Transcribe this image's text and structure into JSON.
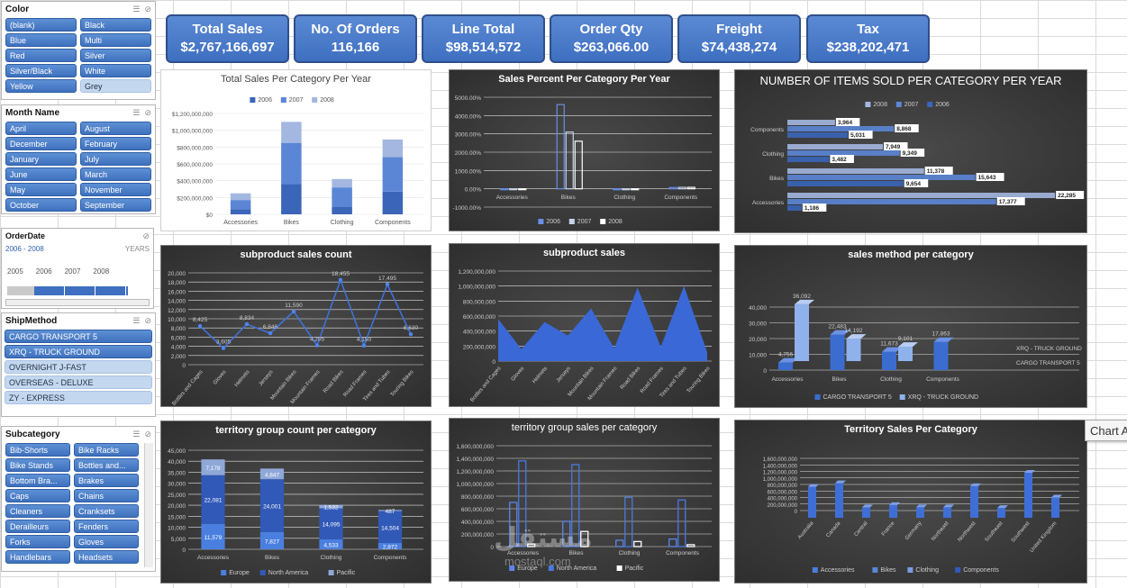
{
  "slicers": {
    "color": {
      "title": "Color",
      "items": [
        {
          "l": "(blank)",
          "on": true
        },
        {
          "l": "Black",
          "on": true
        },
        {
          "l": "Blue",
          "on": true
        },
        {
          "l": "Multi",
          "on": true
        },
        {
          "l": "Red",
          "on": true
        },
        {
          "l": "Silver",
          "on": true
        },
        {
          "l": "Silver/Black",
          "on": true
        },
        {
          "l": "White",
          "on": true
        },
        {
          "l": "Yellow",
          "on": true
        },
        {
          "l": "Grey",
          "on": false
        }
      ]
    },
    "month": {
      "title": "Month Name",
      "items": [
        {
          "l": "April",
          "on": true
        },
        {
          "l": "August",
          "on": true
        },
        {
          "l": "December",
          "on": true
        },
        {
          "l": "February",
          "on": true
        },
        {
          "l": "January",
          "on": true
        },
        {
          "l": "July",
          "on": true
        },
        {
          "l": "June",
          "on": true
        },
        {
          "l": "March",
          "on": true
        },
        {
          "l": "May",
          "on": true
        },
        {
          "l": "November",
          "on": true
        },
        {
          "l": "October",
          "on": true
        },
        {
          "l": "September",
          "on": true
        }
      ]
    },
    "orderdate": {
      "title": "OrderDate",
      "range": "2006 - 2008",
      "unit": "YEARS",
      "years": [
        "2005",
        "2006",
        "2007",
        "2008"
      ]
    },
    "ship": {
      "title": "ShipMethod",
      "items": [
        {
          "l": "CARGO TRANSPORT 5",
          "on": true
        },
        {
          "l": "XRQ - TRUCK GROUND",
          "on": true
        },
        {
          "l": "OVERNIGHT J-FAST",
          "on": false
        },
        {
          "l": "OVERSEAS - DELUXE",
          "on": false
        },
        {
          "l": "ZY - EXPRESS",
          "on": false
        }
      ]
    },
    "subcat": {
      "title": "Subcategory",
      "items": [
        {
          "l": "Bib-Shorts",
          "on": true
        },
        {
          "l": "Bike Racks",
          "on": true
        },
        {
          "l": "Bike Stands",
          "on": true
        },
        {
          "l": "Bottles and...",
          "on": true
        },
        {
          "l": "Bottom Bra...",
          "on": true
        },
        {
          "l": "Brakes",
          "on": true
        },
        {
          "l": "Caps",
          "on": true
        },
        {
          "l": "Chains",
          "on": true
        },
        {
          "l": "Cleaners",
          "on": true
        },
        {
          "l": "Cranksets",
          "on": true
        },
        {
          "l": "Derailleurs",
          "on": true
        },
        {
          "l": "Fenders",
          "on": true
        },
        {
          "l": "Forks",
          "on": true
        },
        {
          "l": "Gloves",
          "on": true
        },
        {
          "l": "Handlebars",
          "on": true
        },
        {
          "l": "Headsets",
          "on": true
        }
      ]
    }
  },
  "kpis": [
    {
      "title": "Total Sales",
      "value": "$2,767,166,697"
    },
    {
      "title": "No. Of Orders",
      "value": "116,166"
    },
    {
      "title": "Line Total",
      "value": "$98,514,572"
    },
    {
      "title": "Order Qty",
      "value": "$263,066.00"
    },
    {
      "title": "Freight",
      "value": "$74,438,274"
    },
    {
      "title": "Tax",
      "value": "$238,202,471"
    }
  ],
  "colors": {
    "y2006": "#3a65b8",
    "y2007": "#5b86d6",
    "y2008": "#a3b7e0",
    "europe": "#4a7fe0",
    "na": "#3159b8",
    "pacific": "#8ea8d8",
    "cargo": "#3b6dd0",
    "truck": "#8fb2ec"
  },
  "tooltip": "Chart A",
  "watermark": "مستقل",
  "watermark2": "mostaql.com",
  "chart_data": [
    {
      "id": "c1",
      "type": "bar",
      "title": "Total Sales Per Category Per Year",
      "categories": [
        "Accessories",
        "Bikes",
        "Clothing",
        "Components"
      ],
      "series": [
        {
          "name": "2006",
          "values": [
            60000000,
            360000000,
            90000000,
            270000000
          ]
        },
        {
          "name": "2007",
          "values": [
            110000000,
            490000000,
            230000000,
            410000000
          ]
        },
        {
          "name": "2008",
          "values": [
            80000000,
            250000000,
            100000000,
            210000000
          ]
        }
      ],
      "yticks": [
        "$0",
        "$200,000,000",
        "$400,000,000",
        "$600,000,000",
        "$800,000,000",
        "$1,000,000,000",
        "$1,200,000,000"
      ],
      "ylim": [
        0,
        1200000000
      ],
      "stacked": true
    },
    {
      "id": "c2",
      "type": "bar",
      "title": "Sales Percent Per Category Per Year",
      "categories": [
        "Accessories",
        "Bikes",
        "Clothing",
        "Components"
      ],
      "series": [
        {
          "name": "2006",
          "values": [
            0,
            4600,
            -50,
            70
          ]
        },
        {
          "name": "2007",
          "values": [
            0,
            3100,
            -50,
            80
          ]
        },
        {
          "name": "2008",
          "values": [
            0,
            2600,
            -50,
            80
          ]
        }
      ],
      "yticks": [
        "-1000.00%",
        "0.00%",
        "1000.00%",
        "2000.00%",
        "3000.00%",
        "4000.00%",
        "5000.00%"
      ],
      "ylim": [
        -1000,
        5000
      ]
    },
    {
      "id": "c3",
      "type": "bar",
      "title": "NUMBER OF ITEMS SOLD PER CATEGORY PER YEAR",
      "categories": [
        "Components",
        "Clothing",
        "Bikes",
        "Accessories"
      ],
      "series": [
        {
          "name": "2008",
          "values": [
            3964,
            7949,
            11378,
            22285
          ]
        },
        {
          "name": "2007",
          "values": [
            8868,
            9349,
            15643,
            17377
          ]
        },
        {
          "name": "2006",
          "values": [
            5031,
            3482,
            9654,
            1186
          ]
        }
      ],
      "xlim": [
        0,
        24000
      ]
    },
    {
      "id": "c4",
      "type": "line",
      "title": "subproduct sales count",
      "categories": [
        "Bottles and Cages",
        "Gloves",
        "Helmets",
        "Jerseys",
        "Mountain Bikes",
        "Mountain Frames",
        "Road Bikes",
        "Road Frames",
        "Tires and Tubes",
        "Touring Bikes"
      ],
      "values": [
        8425,
        3605,
        8834,
        6846,
        11590,
        4205,
        18455,
        4150,
        17495,
        6630
      ],
      "yticks": [
        "0",
        "2,000",
        "4,000",
        "6,000",
        "8,000",
        "10,000",
        "12,000",
        "14,000",
        "16,000",
        "18,000",
        "20,000"
      ],
      "ylim": [
        0,
        20000
      ]
    },
    {
      "id": "c5",
      "type": "area",
      "title": "subproduct sales",
      "categories": [
        "Bottles and Cages",
        "Gloves",
        "Helmets",
        "Jerseys",
        "Mountain Bikes",
        "Mountain Frames",
        "Road Bikes",
        "Road Frames",
        "Tires and Tubes",
        "Touring Bikes"
      ],
      "values": [
        560000000,
        160000000,
        520000000,
        340000000,
        700000000,
        170000000,
        980000000,
        190000000,
        1000000000,
        120000000
      ],
      "yticks": [
        "0",
        "200,000,000",
        "400,000,000",
        "600,000,000",
        "800,000,000",
        "1,000,000,000",
        "1,200,000,000"
      ],
      "ylim": [
        0,
        1200000000
      ]
    },
    {
      "id": "c6",
      "type": "bar",
      "title": "sales method per category",
      "categories": [
        "Accessories",
        "Bikes",
        "Clothing",
        "Components"
      ],
      "series": [
        {
          "name": "CARGO TRANSPORT 5",
          "values": [
            4756,
            22483,
            11673,
            17863
          ]
        },
        {
          "name": "XRQ - TRUCK GROUND",
          "values": [
            36092,
            14192,
            9101,
            0
          ]
        }
      ],
      "yticks": [
        "0",
        "10,000",
        "20,000",
        "30,000",
        "40,000"
      ],
      "ylim": [
        0,
        40000
      ]
    },
    {
      "id": "c7",
      "type": "bar",
      "title": "territory group count per category",
      "categories": [
        "Accessories",
        "Bikes",
        "Clothing",
        "Components"
      ],
      "series": [
        {
          "name": "Europe",
          "values": [
            11579,
            7827,
            4533,
            2872
          ]
        },
        {
          "name": "North America",
          "values": [
            22081,
            24001,
            14095,
            14504
          ]
        },
        {
          "name": "Pacific",
          "values": [
            7178,
            4847,
            1532,
            487
          ]
        }
      ],
      "yticks": [
        "0",
        "5,000",
        "10,000",
        "15,000",
        "20,000",
        "25,000",
        "30,000",
        "35,000",
        "40,000",
        "45,000"
      ],
      "ylim": [
        0,
        45000
      ],
      "stacked": true
    },
    {
      "id": "c8",
      "type": "bar",
      "title": "territory group sales per category",
      "categories": [
        "Accessories",
        "Bikes",
        "Clothing",
        "Components"
      ],
      "series": [
        {
          "name": "Europe",
          "values": [
            700000000,
            400000000,
            100000000,
            120000000
          ]
        },
        {
          "name": "North America",
          "values": [
            1360000000,
            1300000000,
            780000000,
            740000000
          ]
        },
        {
          "name": "Pacific",
          "values": [
            40000000,
            240000000,
            80000000,
            30000000
          ]
        }
      ],
      "yticks": [
        "0",
        "200,000,000",
        "400,000,000",
        "600,000,000",
        "800,000,000",
        "1,000,000,000",
        "1,200,000,000",
        "1,400,000,000",
        "1,600,000,000"
      ],
      "ylim": [
        0,
        1600000000
      ]
    },
    {
      "id": "c9",
      "type": "bar",
      "title": "Territory Sales Per Category",
      "categories": [
        "Australia",
        "Canada",
        "Central",
        "France",
        "Germany",
        "Northeast",
        "Northwest",
        "Southeast",
        "Southwest",
        "United Kingdom"
      ],
      "values": [
        950000000,
        1060000000,
        320000000,
        390000000,
        320000000,
        320000000,
        970000000,
        300000000,
        1380000000,
        620000000
      ],
      "yticks": [
        "0",
        "200,000,000",
        "400,000,000",
        "600,000,000",
        "800,000,000",
        "1,000,000,000",
        "1,200,000,000",
        "1,400,000,000",
        "1,600,000,000"
      ],
      "ylim": [
        0,
        1600000000
      ],
      "legend": [
        "Accessories",
        "Bikes",
        "Clothing",
        "Components"
      ]
    }
  ]
}
